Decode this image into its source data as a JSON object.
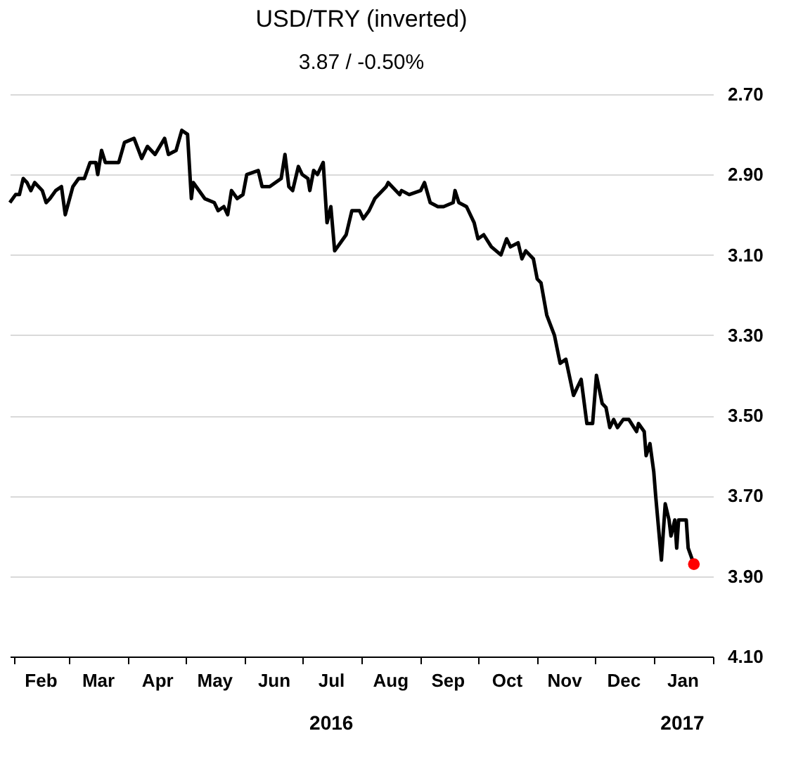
{
  "chart_data": {
    "type": "line",
    "title": "USD/TRY (inverted)",
    "subtitle": "3.87 / -0.50%",
    "xlim": [
      "2016-01-30",
      "2017-02-01"
    ],
    "xticks": [
      {
        "value": "2016-02-01",
        "label": null
      },
      {
        "value": "2016-03-01",
        "label": null
      },
      {
        "value": "2016-04-01",
        "label": null
      },
      {
        "value": "2016-05-01",
        "label": null
      },
      {
        "value": "2016-06-01",
        "label": null
      },
      {
        "value": "2016-07-01",
        "label": null
      },
      {
        "value": "2016-08-01",
        "label": null
      },
      {
        "value": "2016-09-01",
        "label": null
      },
      {
        "value": "2016-10-01",
        "label": null
      },
      {
        "value": "2016-11-01",
        "label": null
      },
      {
        "value": "2016-12-01",
        "label": null
      },
      {
        "value": "2017-01-01",
        "label": null
      },
      {
        "value": "2017-02-01",
        "label": null
      },
      {
        "value": "2016-02-15",
        "label": "Feb"
      },
      {
        "value": "2016-03-16",
        "label": "Mar"
      },
      {
        "value": "2016-04-16",
        "label": "Apr"
      },
      {
        "value": "2016-05-16",
        "label": "May"
      },
      {
        "value": "2016-06-16",
        "label": "Jun"
      },
      {
        "value": "2016-07-16",
        "label": "Jul"
      },
      {
        "value": "2016-08-16",
        "label": "Aug"
      },
      {
        "value": "2016-09-15",
        "label": "Sep"
      },
      {
        "value": "2016-10-16",
        "label": "Oct"
      },
      {
        "value": "2016-11-15",
        "label": "Nov"
      },
      {
        "value": "2016-12-16",
        "label": "Dec"
      },
      {
        "value": "2017-01-16",
        "label": "Jan"
      }
    ],
    "ylim": [
      4.1,
      2.7
    ],
    "yticks": [
      {
        "value": 2.7,
        "label": "2.70"
      },
      {
        "value": 2.9,
        "label": "2.90"
      },
      {
        "value": 3.1,
        "label": "3.10"
      },
      {
        "value": 3.3,
        "label": "3.30"
      },
      {
        "value": 3.5,
        "label": "3.50"
      },
      {
        "value": 3.7,
        "label": "3.70"
      },
      {
        "value": 3.9,
        "label": "3.90"
      },
      {
        "value": 4.1,
        "label": "4.10"
      }
    ],
    "grid": "y",
    "legend": false,
    "line_style": "solid",
    "annotations": [
      "2016",
      "2017"
    ],
    "series": [
      {
        "type": "line",
        "color": "#000000",
        "x": [
          "2016-01-30",
          "2016-02-02",
          "2016-02-04",
          "2016-02-06",
          "2016-02-08",
          "2016-02-10",
          "2016-02-12",
          "2016-02-16",
          "2016-02-18",
          "2016-02-20",
          "2016-02-23",
          "2016-02-26",
          "2016-02-28",
          "2016-03-03",
          "2016-03-06",
          "2016-03-09",
          "2016-03-12",
          "2016-03-15",
          "2016-03-16",
          "2016-03-18",
          "2016-03-20",
          "2016-03-24",
          "2016-03-27",
          "2016-03-30",
          "2016-04-04",
          "2016-04-08",
          "2016-04-11",
          "2016-04-15",
          "2016-04-20",
          "2016-04-22",
          "2016-04-26",
          "2016-04-29",
          "2016-05-02",
          "2016-05-04",
          "2016-05-05",
          "2016-05-11",
          "2016-05-16",
          "2016-05-18",
          "2016-05-21",
          "2016-05-23",
          "2016-05-25",
          "2016-05-28",
          "2016-05-31",
          "2016-06-02",
          "2016-06-08",
          "2016-06-10",
          "2016-06-14",
          "2016-06-20",
          "2016-06-22",
          "2016-06-24",
          "2016-06-26",
          "2016-06-29",
          "2016-07-01",
          "2016-07-04",
          "2016-07-05",
          "2016-07-07",
          "2016-07-09",
          "2016-07-12",
          "2016-07-14",
          "2016-07-16",
          "2016-07-18",
          "2016-07-21",
          "2016-07-24",
          "2016-07-27",
          "2016-07-31",
          "2016-08-02",
          "2016-08-05",
          "2016-08-08",
          "2016-08-14",
          "2016-08-15",
          "2016-08-21",
          "2016-08-22",
          "2016-08-26",
          "2016-09-01",
          "2016-09-03",
          "2016-09-06",
          "2016-09-10",
          "2016-09-13",
          "2016-09-18",
          "2016-09-19",
          "2016-09-21",
          "2016-09-25",
          "2016-09-29",
          "2016-10-01",
          "2016-10-04",
          "2016-10-08",
          "2016-10-13",
          "2016-10-16",
          "2016-10-18",
          "2016-10-22",
          "2016-10-24",
          "2016-10-26",
          "2016-10-30",
          "2016-11-01",
          "2016-11-03",
          "2016-11-06",
          "2016-11-10",
          "2016-11-13",
          "2016-11-16",
          "2016-11-20",
          "2016-11-24",
          "2016-11-27",
          "2016-11-30",
          "2016-12-02",
          "2016-12-05",
          "2016-12-07",
          "2016-12-09",
          "2016-12-11",
          "2016-12-13",
          "2016-12-16",
          "2016-12-19",
          "2016-12-23",
          "2016-12-24",
          "2016-12-27",
          "2016-12-28",
          "2016-12-30",
          "2017-01-01",
          "2017-01-02",
          "2017-01-05",
          "2017-01-07",
          "2017-01-09",
          "2017-01-10",
          "2017-01-12",
          "2017-01-13",
          "2017-01-14",
          "2017-01-18",
          "2017-01-19",
          "2017-01-22"
        ],
        "values": [
          2.97,
          2.95,
          2.95,
          2.91,
          2.92,
          2.94,
          2.92,
          2.94,
          2.97,
          2.96,
          2.94,
          2.93,
          3.0,
          2.93,
          2.91,
          2.91,
          2.87,
          2.87,
          2.9,
          2.84,
          2.87,
          2.87,
          2.87,
          2.82,
          2.81,
          2.86,
          2.83,
          2.85,
          2.81,
          2.85,
          2.84,
          2.79,
          2.8,
          2.96,
          2.92,
          2.96,
          2.97,
          2.99,
          2.98,
          3.0,
          2.94,
          2.96,
          2.95,
          2.9,
          2.89,
          2.93,
          2.93,
          2.91,
          2.85,
          2.93,
          2.94,
          2.88,
          2.9,
          2.91,
          2.94,
          2.89,
          2.9,
          2.87,
          3.02,
          2.98,
          3.09,
          3.07,
          3.05,
          2.99,
          2.99,
          3.01,
          2.99,
          2.96,
          2.93,
          2.92,
          2.95,
          2.94,
          2.95,
          2.94,
          2.92,
          2.97,
          2.98,
          2.98,
          2.97,
          2.94,
          2.97,
          2.98,
          3.02,
          3.06,
          3.05,
          3.08,
          3.1,
          3.06,
          3.08,
          3.07,
          3.11,
          3.09,
          3.11,
          3.16,
          3.17,
          3.25,
          3.3,
          3.37,
          3.36,
          3.45,
          3.41,
          3.52,
          3.52,
          3.4,
          3.47,
          3.48,
          3.53,
          3.51,
          3.53,
          3.51,
          3.51,
          3.54,
          3.52,
          3.54,
          3.6,
          3.57,
          3.64,
          3.7,
          3.86,
          3.72,
          3.76,
          3.8,
          3.76,
          3.83,
          3.76,
          3.76,
          3.83,
          3.87
        ]
      },
      {
        "type": "scatter",
        "color": "#ff0000",
        "marker": "circle",
        "x": [
          "2017-01-22"
        ],
        "values": [
          3.87
        ]
      }
    ]
  }
}
